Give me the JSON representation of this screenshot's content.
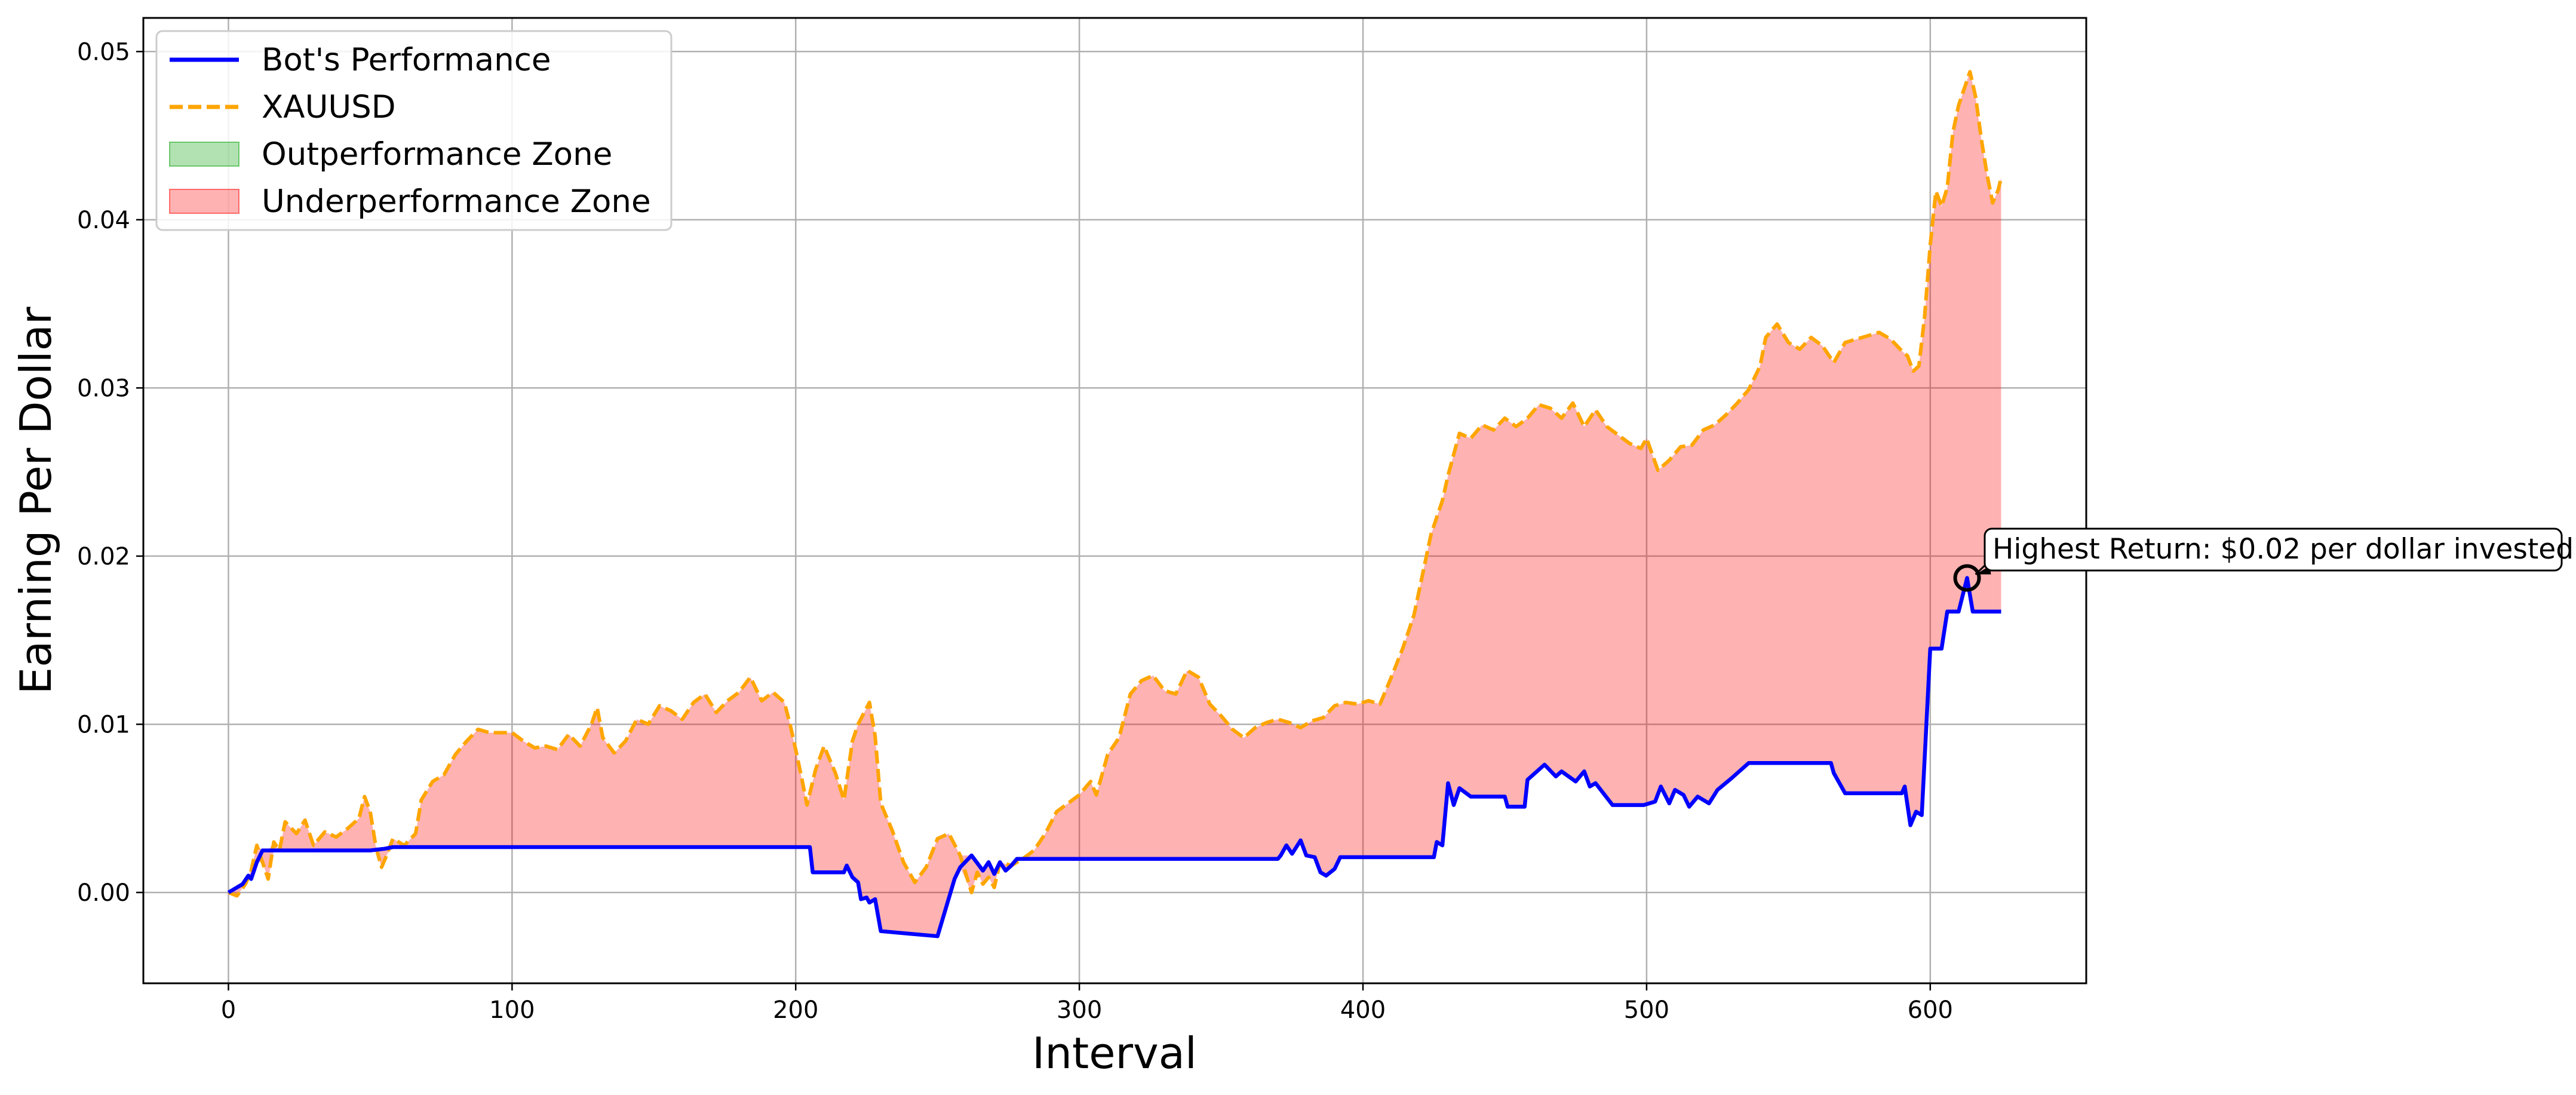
{
  "chart_data": {
    "type": "line",
    "title": "",
    "xlabel": "Interval",
    "ylabel": "Earning Per Dollar",
    "xlim": [
      -30,
      655
    ],
    "ylim": [
      -0.0054,
      0.052
    ],
    "x_ticks": [
      0,
      100,
      200,
      300,
      400,
      500,
      600
    ],
    "y_ticks": [
      0.0,
      0.01,
      0.02,
      0.03,
      0.04,
      0.05
    ],
    "x_tick_labels": [
      "0",
      "100",
      "200",
      "300",
      "400",
      "500",
      "600"
    ],
    "y_tick_labels": [
      "0.00",
      "0.01",
      "0.02",
      "0.03",
      "0.04",
      "0.05"
    ],
    "grid": true,
    "legend_position": "top-left",
    "series": [
      {
        "name": "Bot's Performance",
        "style": "solid",
        "color": "#0000ff",
        "points": [
          [
            0,
            0.0
          ],
          [
            5,
            0.0005
          ],
          [
            7,
            0.001
          ],
          [
            8,
            0.0008
          ],
          [
            10,
            0.0018
          ],
          [
            12,
            0.0025
          ],
          [
            50,
            0.0025
          ],
          [
            55,
            0.0026
          ],
          [
            58,
            0.0027
          ],
          [
            205,
            0.0027
          ],
          [
            206,
            0.0012
          ],
          [
            217,
            0.0012
          ],
          [
            218,
            0.0016
          ],
          [
            220,
            0.0009
          ],
          [
            222,
            0.0006
          ],
          [
            223,
            -0.0004
          ],
          [
            225,
            -0.0003
          ],
          [
            226,
            -0.0006
          ],
          [
            228,
            -0.0004
          ],
          [
            230,
            -0.0023
          ],
          [
            250,
            -0.0026
          ],
          [
            256,
            0.0008
          ],
          [
            258,
            0.0015
          ],
          [
            262,
            0.0022
          ],
          [
            266,
            0.0013
          ],
          [
            268,
            0.0018
          ],
          [
            270,
            0.0011
          ],
          [
            272,
            0.0018
          ],
          [
            274,
            0.0013
          ],
          [
            276,
            0.0016
          ],
          [
            278,
            0.002
          ],
          [
            370,
            0.002
          ],
          [
            371,
            0.0022
          ],
          [
            373,
            0.0028
          ],
          [
            375,
            0.0023
          ],
          [
            378,
            0.0031
          ],
          [
            380,
            0.0022
          ],
          [
            383,
            0.0021
          ],
          [
            385,
            0.0012
          ],
          [
            387,
            0.001
          ],
          [
            390,
            0.0014
          ],
          [
            392,
            0.0021
          ],
          [
            425,
            0.0021
          ],
          [
            426,
            0.003
          ],
          [
            428,
            0.0028
          ],
          [
            430,
            0.0065
          ],
          [
            432,
            0.0052
          ],
          [
            434,
            0.0062
          ],
          [
            438,
            0.0057
          ],
          [
            450,
            0.0057
          ],
          [
            451,
            0.0051
          ],
          [
            457,
            0.0051
          ],
          [
            458,
            0.0067
          ],
          [
            464,
            0.0076
          ],
          [
            468,
            0.0069
          ],
          [
            470,
            0.0072
          ],
          [
            475,
            0.0066
          ],
          [
            478,
            0.0072
          ],
          [
            480,
            0.0063
          ],
          [
            482,
            0.0065
          ],
          [
            488,
            0.0052
          ],
          [
            499,
            0.0052
          ],
          [
            503,
            0.0054
          ],
          [
            505,
            0.0063
          ],
          [
            508,
            0.0053
          ],
          [
            510,
            0.0061
          ],
          [
            513,
            0.0058
          ],
          [
            515,
            0.0051
          ],
          [
            518,
            0.0057
          ],
          [
            522,
            0.0053
          ],
          [
            525,
            0.0061
          ],
          [
            530,
            0.0068
          ],
          [
            536,
            0.0077
          ],
          [
            565,
            0.0077
          ],
          [
            566,
            0.0071
          ],
          [
            570,
            0.0059
          ],
          [
            590,
            0.0059
          ],
          [
            591,
            0.0063
          ],
          [
            593,
            0.004
          ],
          [
            595,
            0.0048
          ],
          [
            597,
            0.0046
          ],
          [
            600,
            0.0145
          ],
          [
            604,
            0.0145
          ],
          [
            606,
            0.0167
          ],
          [
            610,
            0.0167
          ],
          [
            613,
            0.0187
          ],
          [
            615,
            0.0167
          ],
          [
            625,
            0.0167
          ]
        ]
      },
      {
        "name": "XAUUSD",
        "style": "dashed",
        "color": "#ffa500",
        "points": [
          [
            0,
            0.0
          ],
          [
            3,
            -0.0002
          ],
          [
            6,
            0.0005
          ],
          [
            8,
            0.0013
          ],
          [
            10,
            0.0028
          ],
          [
            12,
            0.0018
          ],
          [
            14,
            0.0008
          ],
          [
            16,
            0.003
          ],
          [
            18,
            0.0025
          ],
          [
            20,
            0.0042
          ],
          [
            24,
            0.0035
          ],
          [
            27,
            0.0043
          ],
          [
            30,
            0.0028
          ],
          [
            34,
            0.0036
          ],
          [
            38,
            0.0033
          ],
          [
            42,
            0.0038
          ],
          [
            46,
            0.0044
          ],
          [
            48,
            0.0057
          ],
          [
            50,
            0.0048
          ],
          [
            52,
            0.0027
          ],
          [
            54,
            0.0015
          ],
          [
            56,
            0.0023
          ],
          [
            58,
            0.0032
          ],
          [
            62,
            0.0028
          ],
          [
            66,
            0.0035
          ],
          [
            68,
            0.0055
          ],
          [
            72,
            0.0066
          ],
          [
            76,
            0.007
          ],
          [
            80,
            0.0082
          ],
          [
            84,
            0.009
          ],
          [
            88,
            0.0097
          ],
          [
            92,
            0.0095
          ],
          [
            96,
            0.0095
          ],
          [
            100,
            0.0095
          ],
          [
            104,
            0.009
          ],
          [
            108,
            0.0086
          ],
          [
            112,
            0.0087
          ],
          [
            116,
            0.0085
          ],
          [
            120,
            0.0094
          ],
          [
            124,
            0.0087
          ],
          [
            128,
            0.01
          ],
          [
            130,
            0.011
          ],
          [
            132,
            0.0092
          ],
          [
            136,
            0.0083
          ],
          [
            140,
            0.009
          ],
          [
            144,
            0.0103
          ],
          [
            148,
            0.01
          ],
          [
            152,
            0.0111
          ],
          [
            156,
            0.0108
          ],
          [
            160,
            0.0103
          ],
          [
            164,
            0.0113
          ],
          [
            168,
            0.0118
          ],
          [
            172,
            0.0107
          ],
          [
            176,
            0.0114
          ],
          [
            180,
            0.0119
          ],
          [
            184,
            0.0128
          ],
          [
            188,
            0.0114
          ],
          [
            192,
            0.0119
          ],
          [
            196,
            0.0113
          ],
          [
            198,
            0.01
          ],
          [
            200,
            0.0085
          ],
          [
            202,
            0.0069
          ],
          [
            204,
            0.0052
          ],
          [
            207,
            0.0073
          ],
          [
            210,
            0.0087
          ],
          [
            214,
            0.0071
          ],
          [
            217,
            0.0055
          ],
          [
            220,
            0.009
          ],
          [
            222,
            0.01
          ],
          [
            226,
            0.0113
          ],
          [
            228,
            0.0093
          ],
          [
            230,
            0.0053
          ],
          [
            234,
            0.0037
          ],
          [
            238,
            0.0018
          ],
          [
            242,
            0.0006
          ],
          [
            246,
            0.0015
          ],
          [
            250,
            0.0032
          ],
          [
            254,
            0.0035
          ],
          [
            258,
            0.0022
          ],
          [
            262,
            0.0
          ],
          [
            264,
            0.0012
          ],
          [
            266,
            0.0005
          ],
          [
            268,
            0.0009
          ],
          [
            270,
            0.0003
          ],
          [
            272,
            0.0018
          ],
          [
            276,
            0.0016
          ],
          [
            280,
            0.002
          ],
          [
            284,
            0.0025
          ],
          [
            288,
            0.0035
          ],
          [
            292,
            0.0048
          ],
          [
            296,
            0.0053
          ],
          [
            300,
            0.0058
          ],
          [
            304,
            0.0066
          ],
          [
            306,
            0.0058
          ],
          [
            310,
            0.0082
          ],
          [
            314,
            0.0092
          ],
          [
            318,
            0.0118
          ],
          [
            322,
            0.0126
          ],
          [
            326,
            0.0129
          ],
          [
            330,
            0.012
          ],
          [
            334,
            0.0118
          ],
          [
            338,
            0.0132
          ],
          [
            342,
            0.0128
          ],
          [
            346,
            0.0112
          ],
          [
            350,
            0.0105
          ],
          [
            354,
            0.0097
          ],
          [
            358,
            0.0092
          ],
          [
            362,
            0.0098
          ],
          [
            366,
            0.0101
          ],
          [
            370,
            0.0103
          ],
          [
            374,
            0.0101
          ],
          [
            378,
            0.0098
          ],
          [
            382,
            0.0102
          ],
          [
            386,
            0.0104
          ],
          [
            390,
            0.0111
          ],
          [
            394,
            0.0113
          ],
          [
            398,
            0.0112
          ],
          [
            402,
            0.0114
          ],
          [
            406,
            0.0112
          ],
          [
            410,
            0.0128
          ],
          [
            414,
            0.0145
          ],
          [
            418,
            0.0165
          ],
          [
            420,
            0.0181
          ],
          [
            424,
            0.0213
          ],
          [
            428,
            0.0233
          ],
          [
            430,
            0.0248
          ],
          [
            434,
            0.0273
          ],
          [
            438,
            0.027
          ],
          [
            442,
            0.0278
          ],
          [
            446,
            0.0275
          ],
          [
            450,
            0.0282
          ],
          [
            454,
            0.0277
          ],
          [
            458,
            0.0282
          ],
          [
            462,
            0.029
          ],
          [
            466,
            0.0288
          ],
          [
            470,
            0.0282
          ],
          [
            474,
            0.0291
          ],
          [
            478,
            0.0277
          ],
          [
            482,
            0.0287
          ],
          [
            486,
            0.0277
          ],
          [
            490,
            0.0272
          ],
          [
            494,
            0.0267
          ],
          [
            498,
            0.0264
          ],
          [
            500,
            0.027
          ],
          [
            504,
            0.0251
          ],
          [
            508,
            0.0257
          ],
          [
            512,
            0.0265
          ],
          [
            516,
            0.0266
          ],
          [
            520,
            0.0275
          ],
          [
            524,
            0.0278
          ],
          [
            528,
            0.0284
          ],
          [
            532,
            0.0291
          ],
          [
            536,
            0.0299
          ],
          [
            540,
            0.0313
          ],
          [
            542,
            0.033
          ],
          [
            546,
            0.0338
          ],
          [
            550,
            0.0327
          ],
          [
            554,
            0.0323
          ],
          [
            558,
            0.033
          ],
          [
            562,
            0.0325
          ],
          [
            566,
            0.0315
          ],
          [
            570,
            0.0327
          ],
          [
            574,
            0.0329
          ],
          [
            578,
            0.0331
          ],
          [
            582,
            0.0333
          ],
          [
            586,
            0.0329
          ],
          [
            590,
            0.0322
          ],
          [
            592,
            0.0319
          ],
          [
            594,
            0.031
          ],
          [
            596,
            0.0313
          ],
          [
            598,
            0.0342
          ],
          [
            600,
            0.0385
          ],
          [
            602,
            0.0417
          ],
          [
            604,
            0.0408
          ],
          [
            606,
            0.0419
          ],
          [
            608,
            0.0452
          ],
          [
            610,
            0.0468
          ],
          [
            612,
            0.0478
          ],
          [
            614,
            0.0488
          ],
          [
            616,
            0.0473
          ],
          [
            618,
            0.0448
          ],
          [
            620,
            0.0427
          ],
          [
            622,
            0.041
          ],
          [
            624,
            0.0418
          ],
          [
            625,
            0.0425
          ]
        ]
      }
    ],
    "fill_legend": [
      {
        "name": "Outperformance Zone",
        "color": "#00a000"
      },
      {
        "name": "Underperformance Zone",
        "color": "#ff0000"
      }
    ],
    "annotation": {
      "text": "Highest Return: $0.02 per dollar invested",
      "x": 613,
      "y": 0.0187
    }
  },
  "colors": {
    "bot": "#0000ff",
    "xauusd": "#ffa500",
    "outperformance": "#00a000",
    "underperformance": "#ff0000"
  }
}
